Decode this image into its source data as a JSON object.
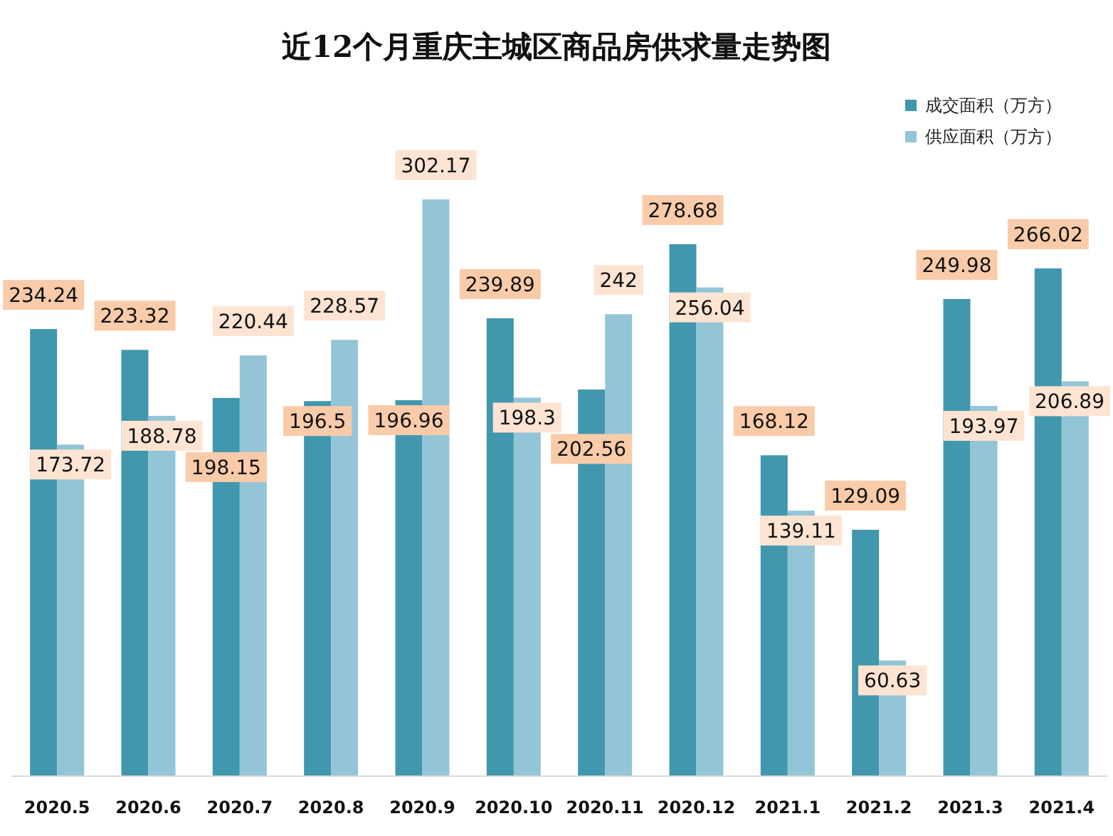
{
  "chart_data": {
    "type": "bar",
    "title": "近12个月重庆主城区商品房供求量走势图",
    "categories": [
      "2020.5",
      "2020.6",
      "2020.7",
      "2020.8",
      "2020.9",
      "2020.10",
      "2020.11",
      "2020.12",
      "2021.1",
      "2021.2",
      "2021.3",
      "2021.4"
    ],
    "series": [
      {
        "name": "成交面积（万方）",
        "color": "#4197ad",
        "values": [
          234.24,
          223.32,
          198.15,
          196.5,
          196.96,
          239.89,
          202.56,
          278.68,
          168.12,
          129.09,
          249.98,
          266.02
        ]
      },
      {
        "name": "供应面积（万方）",
        "color": "#93c5d7",
        "values": [
          173.72,
          188.78,
          220.44,
          228.57,
          302.17,
          198.3,
          242,
          256.04,
          139.11,
          60.63,
          193.97,
          206.89
        ]
      }
    ],
    "data_labels": true,
    "legend": "top right"
  }
}
